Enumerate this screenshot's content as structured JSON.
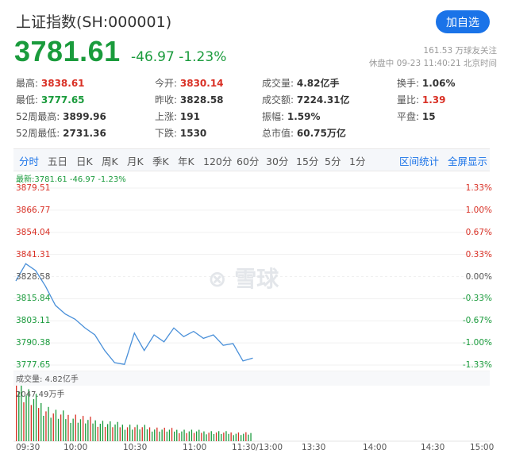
{
  "header": {
    "title": "上证指数(SH:000001)",
    "follow_label": "加自选",
    "price": "3781.61",
    "change": "-46.97 -1.23%",
    "followers": "161.53 万球友关注",
    "status": "休盘中 09-23 11:40:21 北京时间"
  },
  "quote": {
    "high": {
      "label": "最高:",
      "value": "3838.61"
    },
    "low": {
      "label": "最低:",
      "value": "3777.65"
    },
    "wk52_high": {
      "label": "52周最高:",
      "value": "3899.96"
    },
    "wk52_low": {
      "label": "52周最低:",
      "value": "2731.36"
    },
    "open": {
      "label": "今开:",
      "value": "3830.14"
    },
    "prev_close": {
      "label": "昨收:",
      "value": "3828.58"
    },
    "up": {
      "label": "上涨:",
      "value": "191"
    },
    "down": {
      "label": "下跌:",
      "value": "1530"
    },
    "volume": {
      "label": "成交量:",
      "value": "4.82亿手"
    },
    "amount": {
      "label": "成交额:",
      "value": "7224.31亿"
    },
    "amplitude": {
      "label": "振幅:",
      "value": "1.59%"
    },
    "market_cap": {
      "label": "总市值:",
      "value": "60.75万亿"
    },
    "turnover": {
      "label": "换手:",
      "value": "1.06%"
    },
    "vol_ratio": {
      "label": "量比:",
      "value": "1.39"
    },
    "flat": {
      "label": "平盘:",
      "value": "15"
    }
  },
  "periods": [
    "分时",
    "五日",
    "日K",
    "周K",
    "月K",
    "季K",
    "年K",
    "120分",
    "60分",
    "30分",
    "15分",
    "5分",
    "1分"
  ],
  "period_links": [
    "区间统计",
    "全屏显示"
  ],
  "latest_line": "最新:3781.61 -46.97 -1.23%",
  "watermark": "雪球",
  "chart": {
    "price_ticks": [
      "3879.51",
      "3866.77",
      "3854.04",
      "3841.31",
      "3828.58",
      "3815.84",
      "3803.11",
      "3790.38",
      "3777.65"
    ],
    "pct_ticks": [
      "1.33%",
      "1.00%",
      "0.67%",
      "0.33%",
      "0.00%",
      "-0.33%",
      "-0.67%",
      "-1.00%",
      "-1.33%"
    ],
    "x_ticks": [
      "09:30",
      "10:00",
      "10:30",
      "11:00",
      "11:30/13:00",
      "13:30",
      "14:00",
      "14:30",
      "15:00"
    ],
    "volume_label": "成交量: 4.82亿手",
    "volume_max": "2047.49万手"
  },
  "chart_data": {
    "type": "line",
    "xlabel": "",
    "ylabel": "",
    "ylim": [
      3777.65,
      3879.51
    ],
    "prev_close": 3828.58,
    "x": [
      "09:30",
      "09:35",
      "09:40",
      "09:45",
      "09:50",
      "09:55",
      "10:00",
      "10:05",
      "10:10",
      "10:15",
      "10:20",
      "10:25",
      "10:30",
      "10:35",
      "10:40",
      "10:45",
      "10:50",
      "10:55",
      "11:00",
      "11:05",
      "11:10",
      "11:15",
      "11:20",
      "11:25",
      "11:30"
    ],
    "series": [
      {
        "values": [
          3826,
          3836,
          3832,
          3823,
          3812,
          3807,
          3804,
          3799,
          3795,
          3786,
          3779,
          3778,
          3796,
          3786,
          3795,
          3791,
          3799,
          3794,
          3797,
          3793,
          3795,
          3789,
          3790,
          3780,
          3781.61
        ]
      }
    ],
    "volume": [
      2047,
      1720,
      1450,
      1180,
      1000,
      920,
      880,
      780,
      720,
      660,
      600,
      560,
      530,
      500,
      460,
      430,
      400,
      380,
      360,
      340,
      330,
      310,
      300,
      280,
      300
    ]
  },
  "colors": {
    "up": "#d93025",
    "down": "#1a9b3c",
    "line": "#4a90d9",
    "accent": "#1a73e8"
  }
}
